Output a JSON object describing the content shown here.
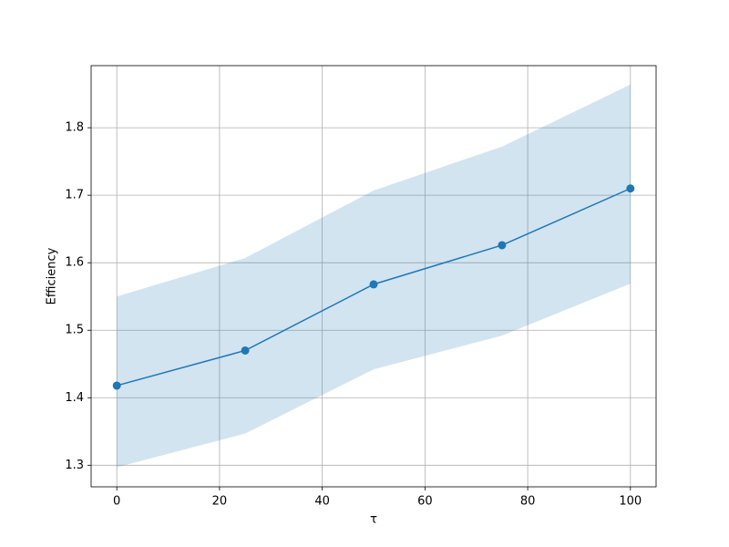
{
  "chart_data": {
    "type": "line",
    "xlabel": "τ",
    "ylabel": "Efficiency",
    "x": [
      0,
      25,
      50,
      75,
      100
    ],
    "values": [
      1.418,
      1.47,
      1.568,
      1.626,
      1.71
    ],
    "color": "#1f77b4",
    "band": {
      "lower": [
        1.297,
        1.347,
        1.442,
        1.492,
        1.569
      ],
      "upper": [
        1.55,
        1.607,
        1.707,
        1.772,
        1.864
      ],
      "color": "#1f77b4",
      "opacity": 0.2
    },
    "xlim": [
      -5,
      105
    ],
    "xticks": [
      0,
      20,
      40,
      60,
      80,
      100
    ],
    "ylim": [
      1.268,
      1.892
    ],
    "yticks": [
      1.3,
      1.4,
      1.5,
      1.6,
      1.7,
      1.8
    ],
    "grid": true
  }
}
